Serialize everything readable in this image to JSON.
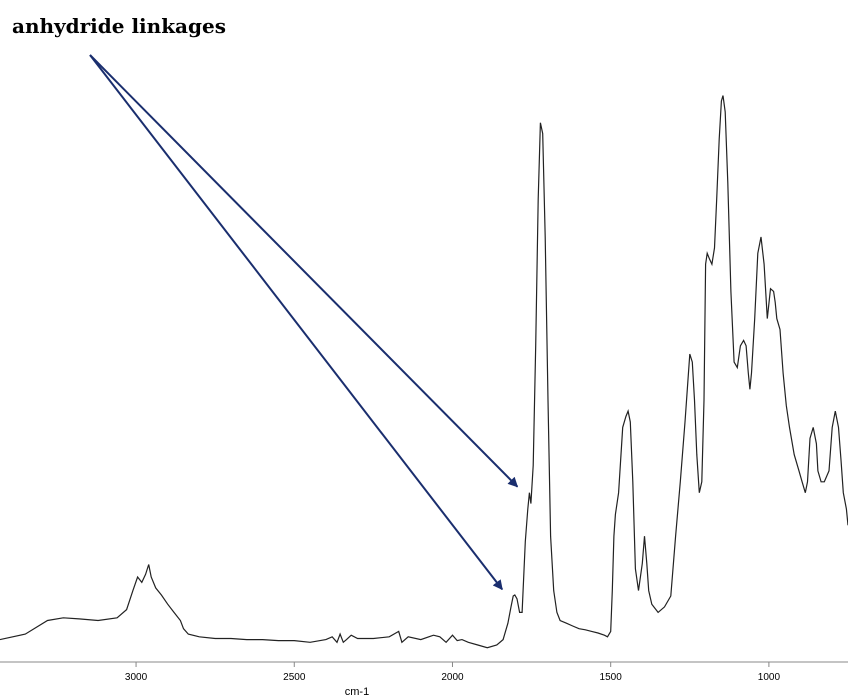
{
  "chart_data": {
    "type": "line",
    "title": "",
    "xlabel": "cm-1",
    "ylabel": "",
    "xlim": [
      3430,
      750
    ],
    "x_reversed": true,
    "grid": false,
    "legend": "none",
    "ticks": [
      3000,
      2500,
      2000,
      1500,
      1000
    ],
    "annotation": {
      "text": "anhydride linkages",
      "targets_x": [
        1757,
        1805
      ]
    },
    "colors": {
      "line": "#222222",
      "arrow": "#1a2e6e"
    },
    "series": [
      {
        "x": [
          3430,
          3350,
          3280,
          3230,
          3180,
          3120,
          3060,
          3030,
          3010,
          2995,
          2982,
          2970,
          2960,
          2952,
          2938,
          2920,
          2900,
          2880,
          2860,
          2850,
          2835,
          2800,
          2750,
          2700,
          2650,
          2600,
          2550,
          2500,
          2450,
          2400,
          2380,
          2365,
          2355,
          2345,
          2335,
          2320,
          2300,
          2250,
          2200,
          2170,
          2160,
          2140,
          2100,
          2060,
          2040,
          2020,
          2000,
          1985,
          1970,
          1950,
          1920,
          1890,
          1860,
          1840,
          1825,
          1815,
          1808,
          1803,
          1796,
          1788,
          1780,
          1770,
          1762,
          1757,
          1752,
          1745,
          1737,
          1729,
          1722,
          1715,
          1707,
          1698,
          1690,
          1680,
          1670,
          1660,
          1640,
          1620,
          1600,
          1580,
          1560,
          1540,
          1520,
          1510,
          1500,
          1495,
          1490,
          1485,
          1475,
          1462,
          1452,
          1445,
          1438,
          1430,
          1422,
          1412,
          1400,
          1393,
          1386,
          1380,
          1370,
          1350,
          1330,
          1310,
          1295,
          1280,
          1265,
          1250,
          1242,
          1235,
          1228,
          1220,
          1212,
          1205,
          1200,
          1195,
          1188,
          1180,
          1172,
          1165,
          1157,
          1150,
          1145,
          1138,
          1130,
          1120,
          1110,
          1100,
          1090,
          1080,
          1072,
          1065,
          1060,
          1055,
          1045,
          1035,
          1025,
          1015,
          1005,
          995,
          985,
          980,
          975,
          965,
          955,
          945,
          935,
          920,
          905,
          895,
          885,
          878,
          870,
          860,
          850,
          845,
          835,
          825,
          810,
          800,
          790,
          780,
          772,
          765,
          755,
          750
        ],
        "y": [
          0.01,
          0.02,
          0.045,
          0.05,
          0.048,
          0.045,
          0.05,
          0.065,
          0.1,
          0.125,
          0.115,
          0.13,
          0.148,
          0.125,
          0.105,
          0.092,
          0.075,
          0.06,
          0.045,
          0.03,
          0.02,
          0.015,
          0.012,
          0.012,
          0.01,
          0.01,
          0.008,
          0.008,
          0.005,
          0.01,
          0.015,
          0.005,
          0.02,
          0.005,
          0.01,
          0.018,
          0.012,
          0.012,
          0.015,
          0.025,
          0.005,
          0.015,
          0.01,
          0.018,
          0.015,
          0.005,
          0.018,
          0.008,
          0.01,
          0.005,
          0.0,
          -0.005,
          0.0,
          0.01,
          0.04,
          0.07,
          0.09,
          0.092,
          0.085,
          0.06,
          0.06,
          0.19,
          0.25,
          0.28,
          0.26,
          0.33,
          0.55,
          0.82,
          0.96,
          0.94,
          0.75,
          0.45,
          0.2,
          0.1,
          0.06,
          0.045,
          0.04,
          0.035,
          0.03,
          0.028,
          0.025,
          0.022,
          0.018,
          0.015,
          0.025,
          0.1,
          0.2,
          0.24,
          0.28,
          0.4,
          0.42,
          0.43,
          0.41,
          0.3,
          0.14,
          0.1,
          0.15,
          0.2,
          0.15,
          0.1,
          0.075,
          0.06,
          0.07,
          0.09,
          0.2,
          0.3,
          0.41,
          0.535,
          0.52,
          0.45,
          0.35,
          0.28,
          0.3,
          0.45,
          0.7,
          0.72,
          0.71,
          0.7,
          0.73,
          0.82,
          0.93,
          1.0,
          1.01,
          0.98,
          0.85,
          0.65,
          0.52,
          0.51,
          0.55,
          0.56,
          0.55,
          0.5,
          0.47,
          0.5,
          0.6,
          0.72,
          0.75,
          0.7,
          0.6,
          0.655,
          0.65,
          0.63,
          0.6,
          0.58,
          0.5,
          0.44,
          0.4,
          0.35,
          0.32,
          0.3,
          0.28,
          0.3,
          0.38,
          0.4,
          0.37,
          0.32,
          0.3,
          0.3,
          0.32,
          0.4,
          0.43,
          0.4,
          0.34,
          0.28,
          0.25,
          0.22
        ]
      }
    ]
  }
}
